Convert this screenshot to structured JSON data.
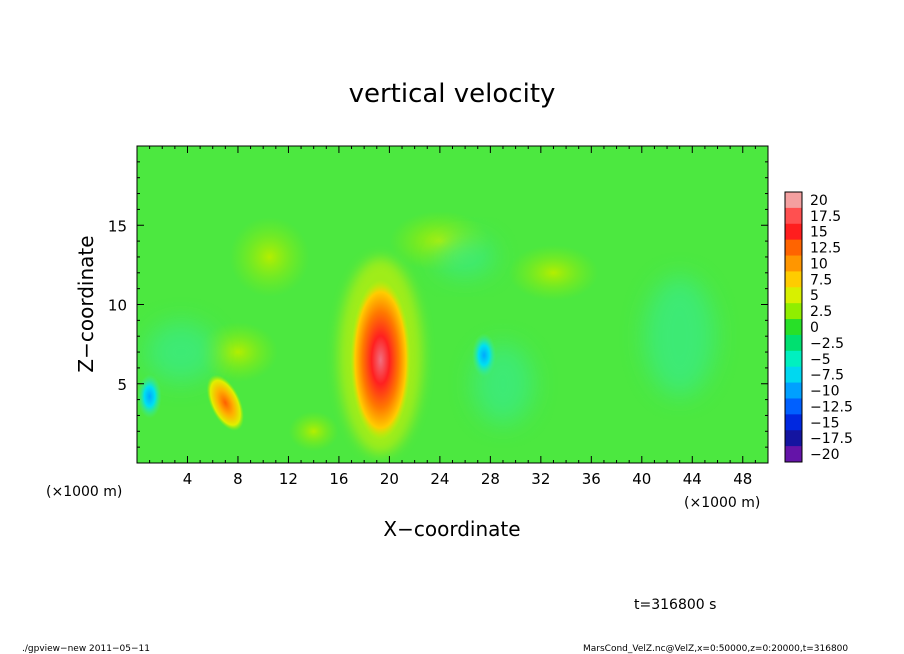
{
  "chart_data": {
    "type": "heatmap",
    "title": "vertical velocity",
    "xlabel": "X−coordinate",
    "ylabel": "Z−coordinate",
    "x_unit": "(×1000 m)",
    "xlim": [
      0,
      50
    ],
    "ylim": [
      0,
      20
    ],
    "xticks": [
      4,
      8,
      12,
      16,
      20,
      24,
      28,
      32,
      36,
      40,
      44,
      48
    ],
    "xtick_labels": [
      "4",
      "8",
      "12",
      "16",
      "20",
      "24",
      "28",
      "32",
      "36",
      "40",
      "44",
      "48"
    ],
    "yticks": [
      5,
      10,
      15
    ],
    "ytick_labels": [
      "5",
      "10",
      "15"
    ],
    "colorbar": {
      "levels": [
        20,
        17.5,
        15,
        12.5,
        10,
        7.5,
        5,
        2.5,
        0,
        -2.5,
        -5,
        -7.5,
        -10,
        -12.5,
        -15,
        -17.5,
        -20
      ],
      "labels": [
        "20",
        "17.5",
        "15",
        "12.5",
        "10",
        "7.5",
        "5",
        "2.5",
        "0",
        "−2.5",
        "−5",
        "−7.5",
        "−10",
        "−12.5",
        "−15",
        "−17.5",
        "−20"
      ],
      "colors": [
        "#f4a0a0",
        "#ff5050",
        "#ff1e1e",
        "#ff6400",
        "#ff9600",
        "#ffcc00",
        "#d8f000",
        "#90ee00",
        "#28e028",
        "#00e070",
        "#00f0c0",
        "#00d8f0",
        "#00a0ff",
        "#0060ff",
        "#0028e0",
        "#1414a0",
        "#6414a8"
      ]
    },
    "features": [
      {
        "name": "updraft core",
        "x": 19.3,
        "z": 6.5,
        "max_value": 17
      },
      {
        "name": "updraft",
        "x": 7.0,
        "z": 3.8,
        "max_value": 11
      },
      {
        "name": "downdraft",
        "x": 27.5,
        "z": 6.8,
        "min_value": -7
      },
      {
        "name": "downdraft",
        "x": 1.0,
        "z": 4.2,
        "min_value": -5
      }
    ],
    "time_label": "t=316800 s"
  },
  "footer": {
    "program": "./gpview−new   2011−05−11",
    "source": "MarsCond_VelZ.nc@VelZ,x=0:50000,z=0:20000,t=316800"
  }
}
